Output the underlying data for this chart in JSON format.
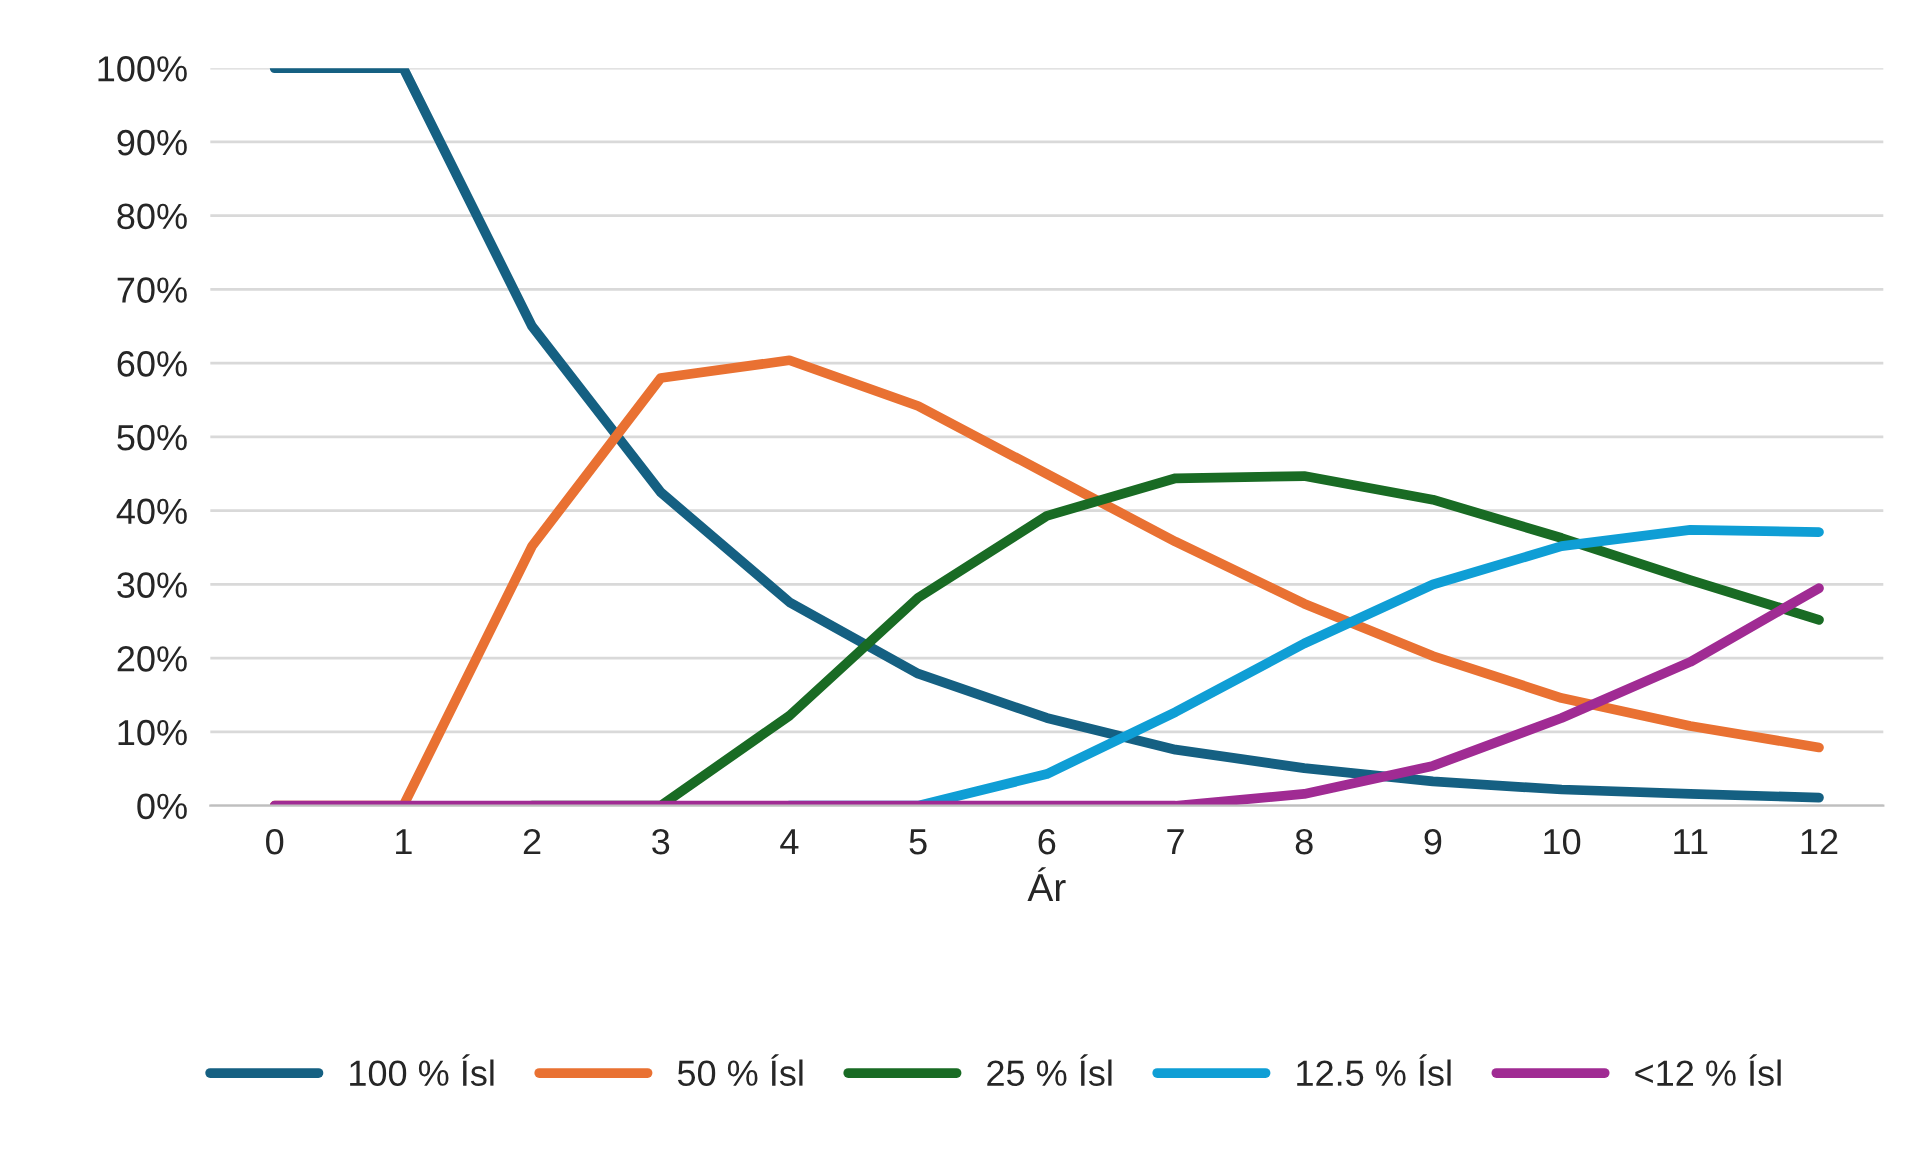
{
  "chart_data": {
    "type": "line",
    "xlabel": "Ár",
    "categories": [
      "0",
      "1",
      "2",
      "3",
      "4",
      "5",
      "6",
      "7",
      "8",
      "9",
      "10",
      "11",
      "12"
    ],
    "series": [
      {
        "name": "100 % Ísl",
        "color": "#156082",
        "values": [
          100,
          100,
          65,
          42.5,
          27.6,
          17.9,
          11.9,
          7.6,
          5.1,
          3.3,
          2.2,
          1.6,
          1.1
        ]
      },
      {
        "name": "50 % Ísl",
        "color": "#e97132",
        "values": [
          0,
          0,
          35.2,
          58,
          60.4,
          54.2,
          45,
          35.8,
          27.4,
          20.3,
          14.6,
          10.8,
          7.9
        ]
      },
      {
        "name": "25 % Ísl",
        "color": "#196b24",
        "values": [
          null,
          null,
          0,
          0,
          12.2,
          28.2,
          39.3,
          44.4,
          44.7,
          41.5,
          36.3,
          30.6,
          25.2
        ]
      },
      {
        "name": "12.5 % Ísl",
        "color": "#0f9ed5",
        "values": [
          null,
          null,
          null,
          null,
          0,
          0,
          4.3,
          12.7,
          22,
          30,
          35.2,
          37.4,
          37.1
        ]
      },
      {
        "name": "<12 % Ísl",
        "color": "#a02b93",
        "values": [
          0,
          0,
          0,
          0,
          0,
          0,
          0,
          0,
          1.6,
          5.4,
          11.9,
          19.5,
          29.5
        ]
      }
    ],
    "ylim": [
      0,
      100
    ],
    "yticks": [
      {
        "value": 0,
        "label": "0%"
      },
      {
        "value": 10,
        "label": "10%"
      },
      {
        "value": 20,
        "label": "20%"
      },
      {
        "value": 30,
        "label": "30%"
      },
      {
        "value": 40,
        "label": "40%"
      },
      {
        "value": 50,
        "label": "50%"
      },
      {
        "value": 60,
        "label": "60%"
      },
      {
        "value": 70,
        "label": "70%"
      },
      {
        "value": 80,
        "label": "80%"
      },
      {
        "value": 90,
        "label": "90%"
      },
      {
        "value": 100,
        "label": "100%"
      }
    ],
    "grid": "y",
    "legend": "bottom",
    "marker": "none",
    "line_style": "solid"
  }
}
